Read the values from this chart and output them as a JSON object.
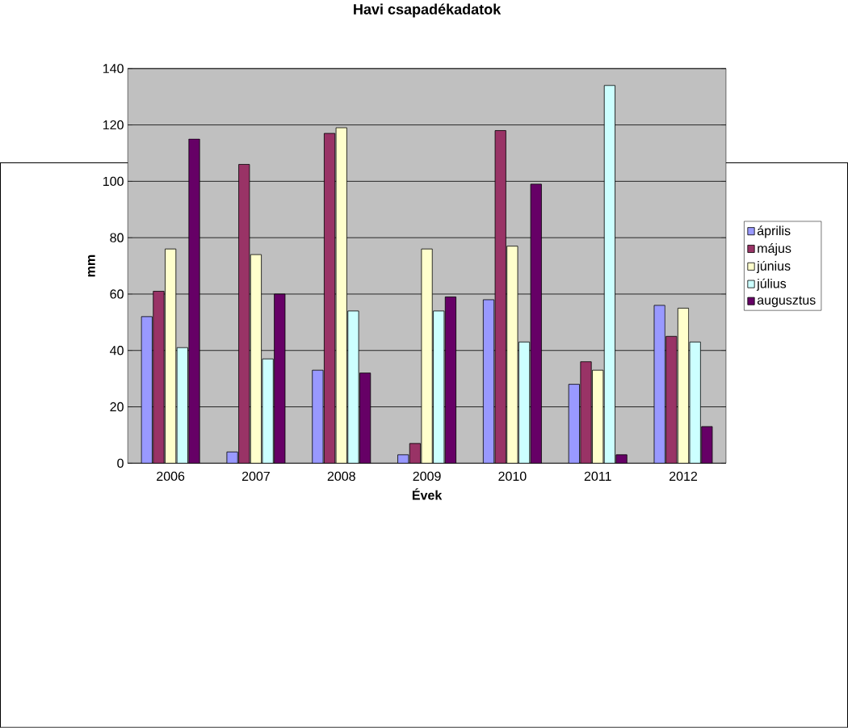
{
  "chart_data": {
    "type": "bar",
    "title": "Havi csapadékadatok",
    "xlabel": "Évek",
    "ylabel": "mm",
    "categories": [
      "2006",
      "2007",
      "2008",
      "2009",
      "2010",
      "2011",
      "2012"
    ],
    "series": [
      {
        "name": "április",
        "color": "#9999ff",
        "values": [
          52,
          4,
          33,
          3,
          58,
          28,
          56
        ]
      },
      {
        "name": "május",
        "color": "#993366",
        "values": [
          61,
          106,
          117,
          7,
          118,
          36,
          45
        ]
      },
      {
        "name": "június",
        "color": "#ffffcc",
        "values": [
          76,
          74,
          119,
          76,
          77,
          33,
          55
        ]
      },
      {
        "name": "július",
        "color": "#ccffff",
        "values": [
          41,
          37,
          54,
          54,
          43,
          134,
          43
        ]
      },
      {
        "name": "augusztus",
        "color": "#660066",
        "values": [
          115,
          60,
          32,
          59,
          99,
          3,
          13
        ]
      }
    ],
    "ylim": [
      0,
      140
    ],
    "yticks": [
      0,
      20,
      40,
      60,
      80,
      100,
      120,
      140
    ],
    "grid": "y",
    "legend": "right"
  }
}
